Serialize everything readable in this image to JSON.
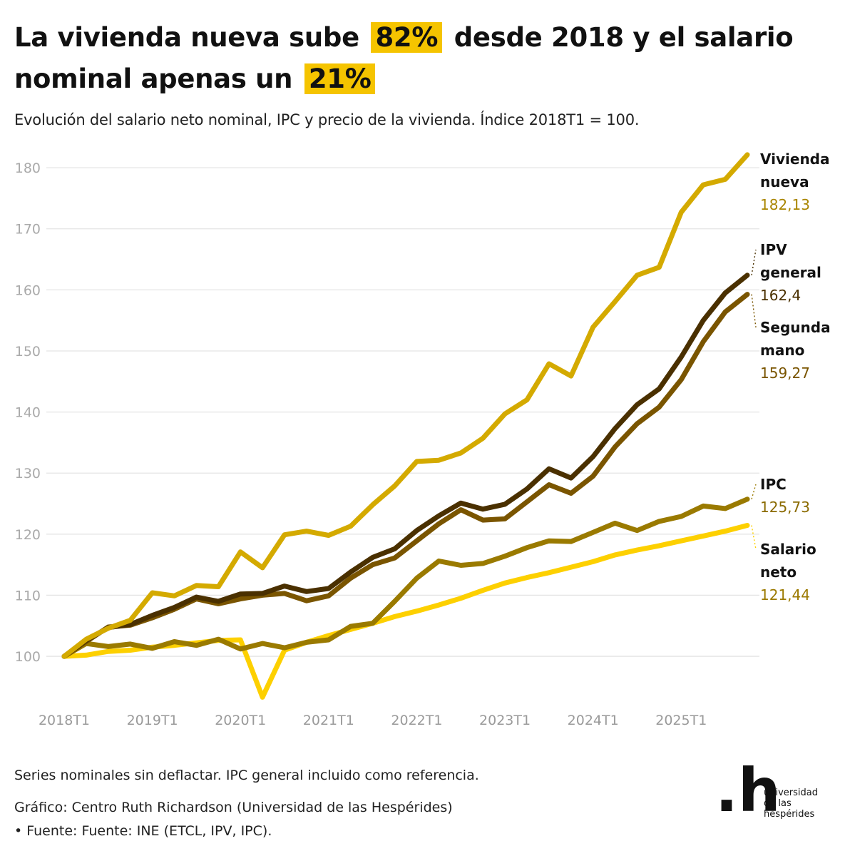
{
  "title": {
    "part1": "La vivienda nueva sube",
    "hl1": "82%",
    "part2": "desde 2018 y el salario nominal apenas un",
    "hl2": "21%"
  },
  "subtitle": "Evolución del salario neto nominal, IPC y precio de la vivienda. Índice 2018T1 = 100.",
  "footer": {
    "note": "Series nominales sin deflactar. IPC general incluido como referencia.",
    "credit": "Gráfico: Centro Ruth Richardson (Universidad de las Hespérides)",
    "source": "• Fuente: Fuente: INE (ETCL, IPV, IPC)."
  },
  "logo": {
    "mark": ".h",
    "line1": "universidad",
    "line2": "de las",
    "line3": "hespérides"
  },
  "chart_data": {
    "type": "line",
    "title": "",
    "xlabel": "",
    "ylabel": "",
    "x_ticks": [
      "2018T1",
      "2019T1",
      "2020T1",
      "2021T1",
      "2022T1",
      "2023T1",
      "2024T1",
      "2025T1"
    ],
    "x_start": "2018T1",
    "x_end": "2025T4",
    "ylim": [
      93,
      182
    ],
    "y_ticks": [
      100,
      110,
      120,
      130,
      140,
      150,
      160,
      170,
      180
    ],
    "grid": true,
    "legend": "direct labels at right end of lines",
    "series": [
      {
        "name": "Salario neto",
        "label_lines": [
          "Salario",
          "neto"
        ],
        "end_label": "121,44",
        "color": "#fdd000",
        "label_color": "#9c7a00",
        "values": [
          100,
          100.2,
          100.8,
          101.0,
          101.5,
          101.8,
          102.2,
          102.6,
          102.7,
          93.3,
          101.0,
          102.3,
          103.4,
          104.4,
          105.4,
          106.5,
          107.4,
          108.4,
          109.5,
          110.8,
          112.0,
          112.9,
          113.7,
          114.6,
          115.5,
          116.6,
          117.4,
          118.1,
          118.9,
          119.7,
          120.5,
          121.44
        ]
      },
      {
        "name": "IPC",
        "label_lines": [
          "IPC"
        ],
        "end_label": "125,73",
        "color": "#9a7a00",
        "label_color": "#8a6a00",
        "values": [
          100,
          102.1,
          101.6,
          102.0,
          101.3,
          102.4,
          101.8,
          102.8,
          101.2,
          102.1,
          101.4,
          102.3,
          102.7,
          104.9,
          105.4,
          109.0,
          112.8,
          115.6,
          114.9,
          115.2,
          116.4,
          117.8,
          118.9,
          118.8,
          120.3,
          121.8,
          120.6,
          122.1,
          122.9,
          124.6,
          124.2,
          125.73
        ]
      },
      {
        "name": "Segunda mano",
        "label_lines": [
          "Segunda",
          "mano"
        ],
        "end_label": "159,27",
        "color": "#7a5500",
        "label_color": "#7a5500",
        "values": [
          100,
          102.4,
          104.8,
          105.1,
          106.3,
          107.7,
          109.4,
          108.6,
          109.4,
          110.0,
          110.3,
          109.1,
          109.9,
          112.8,
          115.0,
          116.1,
          118.9,
          121.7,
          124.0,
          122.3,
          122.5,
          125.3,
          128.1,
          126.7,
          129.5,
          134.3,
          138.1,
          140.8,
          145.3,
          151.5,
          156.4,
          159.27
        ]
      },
      {
        "name": "IPV general",
        "label_lines": [
          "IPV",
          "general"
        ],
        "end_label": "162,4",
        "color": "#4a3000",
        "label_color": "#4a3000",
        "values": [
          100,
          102.6,
          104.7,
          105.2,
          106.7,
          108.0,
          109.7,
          109.0,
          110.2,
          110.3,
          111.5,
          110.6,
          111.1,
          113.8,
          116.2,
          117.6,
          120.6,
          123.0,
          125.1,
          124.1,
          124.9,
          127.4,
          130.7,
          129.2,
          132.7,
          137.3,
          141.2,
          143.8,
          149.0,
          155.0,
          159.5,
          162.4
        ]
      },
      {
        "name": "Vivienda nueva",
        "label_lines": [
          "Vivienda",
          "nueva"
        ],
        "end_label": "182,13",
        "color": "#d4aa00",
        "label_color": "#a98500",
        "values": [
          100,
          102.8,
          104.6,
          105.9,
          110.4,
          109.9,
          111.6,
          111.4,
          117.1,
          114.5,
          119.9,
          120.5,
          119.8,
          121.3,
          124.8,
          127.9,
          131.9,
          132.1,
          133.3,
          135.7,
          139.7,
          142.0,
          147.9,
          145.9,
          153.9,
          158.1,
          162.4,
          163.7,
          172.7,
          177.2,
          178.1,
          182.13
        ]
      }
    ]
  }
}
